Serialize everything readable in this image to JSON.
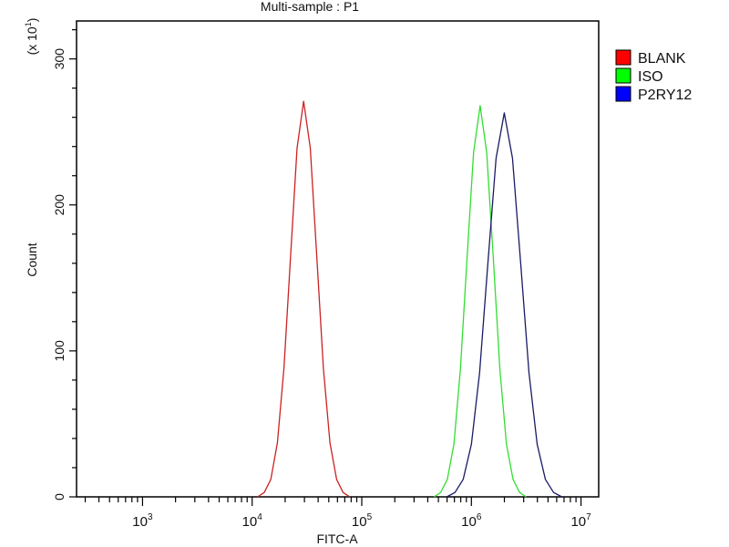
{
  "chart_data": {
    "type": "line",
    "title": "Multi-sample : P1",
    "xlabel": "FITC-A",
    "ylabel": "Count",
    "y_multiplier": "(x 10",
    "y_multiplier_exp": "1",
    "x_scale": "log",
    "xlim": [
      250,
      14500000
    ],
    "ylim": [
      0,
      326
    ],
    "x_ticks": [
      {
        "base": "10",
        "exp": "3",
        "value": 1000
      },
      {
        "base": "10",
        "exp": "4",
        "value": 10000
      },
      {
        "base": "10",
        "exp": "5",
        "value": 100000
      },
      {
        "base": "10",
        "exp": "6",
        "value": 1000000
      },
      {
        "base": "10",
        "exp": "7",
        "value": 10000000
      }
    ],
    "y_ticks": [
      0,
      100,
      200,
      300
    ],
    "grid": false,
    "legend_position": "right",
    "series": [
      {
        "name": "BLANK",
        "color": "#cc2222",
        "legend_color": "#ff0000",
        "points": [
          [
            11200,
            0
          ],
          [
            12900,
            3
          ],
          [
            14800,
            12
          ],
          [
            17000,
            37
          ],
          [
            19500,
            88
          ],
          [
            22400,
            164
          ],
          [
            25700,
            239
          ],
          [
            29500,
            271
          ],
          [
            33900,
            239
          ],
          [
            38900,
            164
          ],
          [
            44700,
            88
          ],
          [
            51300,
            37
          ],
          [
            58900,
            12
          ],
          [
            67600,
            3
          ],
          [
            77600,
            0
          ]
        ]
      },
      {
        "name": "ISO",
        "color": "#33dd33",
        "legend_color": "#00ff00",
        "points": [
          [
            457000,
            0
          ],
          [
            525000,
            3
          ],
          [
            603000,
            12
          ],
          [
            692000,
            36
          ],
          [
            794000,
            87
          ],
          [
            912000,
            163
          ],
          [
            1047000,
            236
          ],
          [
            1202000,
            268
          ],
          [
            1380000,
            236
          ],
          [
            1585000,
            163
          ],
          [
            1820000,
            87
          ],
          [
            2089000,
            36
          ],
          [
            2399000,
            12
          ],
          [
            2754000,
            3
          ],
          [
            3162000,
            0
          ]
        ]
      },
      {
        "name": "P2RY12",
        "color": "#1a1a66",
        "legend_color": "#0000ff",
        "points": [
          [
            596000,
            0
          ],
          [
            708000,
            3
          ],
          [
            841000,
            12
          ],
          [
            1000000,
            36
          ],
          [
            1189000,
            85
          ],
          [
            1413000,
            160
          ],
          [
            1679000,
            232
          ],
          [
            1995000,
            263
          ],
          [
            2371000,
            232
          ],
          [
            2818000,
            160
          ],
          [
            3350000,
            85
          ],
          [
            3981000,
            36
          ],
          [
            4732000,
            12
          ],
          [
            5623000,
            3
          ],
          [
            6683000,
            0
          ]
        ]
      }
    ]
  }
}
